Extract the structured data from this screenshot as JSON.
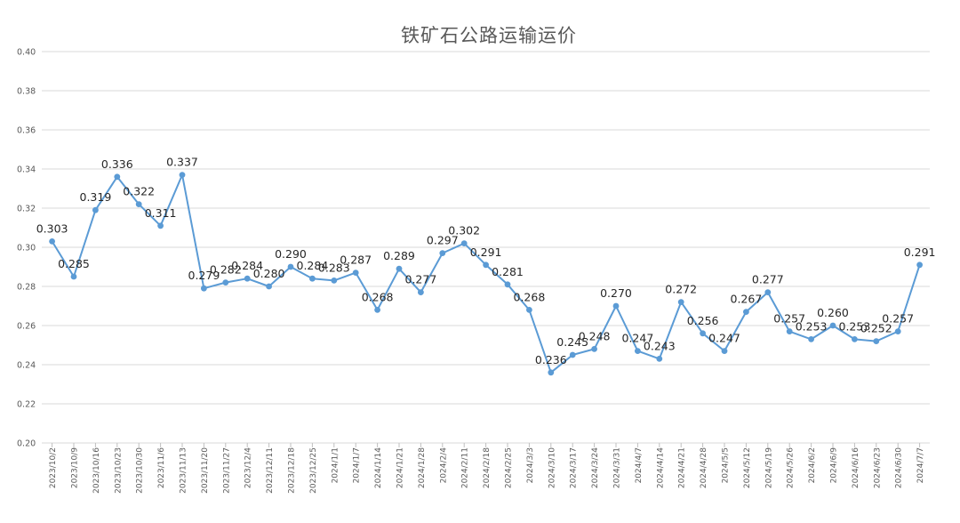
{
  "chart_data": {
    "type": "line",
    "title": "铁矿石公路运输运价",
    "ylim": [
      0.2,
      0.4
    ],
    "yticks": [
      "0.20",
      "0.22",
      "0.24",
      "0.26",
      "0.28",
      "0.30",
      "0.32",
      "0.34",
      "0.36",
      "0.38",
      "0.40"
    ],
    "grid": true,
    "legend": "none",
    "line_color": "#5B9BD5",
    "categories": [
      "2023/10/2",
      "2023/10/9",
      "2023/10/16",
      "2023/10/23",
      "2023/10/30",
      "2023/11/6",
      "2023/11/13",
      "2023/11/20",
      "2023/11/27",
      "2023/12/4",
      "2023/12/11",
      "2023/12/18",
      "2023/12/25",
      "2024/1/1",
      "2024/1/7",
      "2024/1/14",
      "2024/1/21",
      "2024/1/28",
      "2024/2/4",
      "2024/2/11",
      "2024/2/18",
      "2024/2/25",
      "2024/3/3",
      "2024/3/10",
      "2024/3/17",
      "2024/3/24",
      "2024/3/31",
      "2024/4/7",
      "2024/4/14",
      "2024/4/21",
      "2024/4/28",
      "2024/5/5",
      "2024/5/12",
      "2024/5/19",
      "2024/5/26",
      "2024/6/2",
      "2024/6/9",
      "2024/6/16",
      "2024/6/23",
      "2024/6/30",
      "2024/7/7"
    ],
    "values": [
      0.303,
      0.285,
      0.319,
      0.336,
      0.322,
      0.311,
      0.337,
      0.279,
      0.282,
      0.284,
      0.28,
      0.29,
      0.284,
      0.283,
      0.287,
      0.268,
      0.289,
      0.277,
      0.297,
      0.302,
      0.291,
      0.281,
      0.268,
      0.236,
      0.245,
      0.248,
      0.27,
      0.247,
      0.243,
      0.272,
      0.256,
      0.247,
      0.267,
      0.277,
      0.257,
      0.253,
      0.26,
      0.253,
      0.252,
      0.257,
      0.291
    ],
    "data_labels": [
      "0.303",
      "0.285",
      "0.319",
      "0.336",
      "0.322",
      "0.311",
      "0.337",
      "0.279",
      "0.282",
      "0.284",
      "0.280",
      "0.290",
      "0.284",
      "0.283",
      "0.287",
      "0.268",
      "0.289",
      "0.277",
      "0.297",
      "0.302",
      "0.291",
      "0.281",
      "0.268",
      "0.236",
      "0.245",
      "0.248",
      "0.270",
      "0.247",
      "0.243",
      "0.272",
      "0.256",
      "0.247",
      "0.267",
      "0.277",
      "0.257",
      "0.253",
      "0.260",
      "0.253",
      "0.252",
      "0.257",
      "0.291"
    ]
  }
}
